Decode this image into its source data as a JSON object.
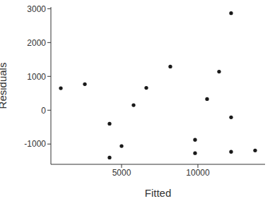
{
  "chart_data": {
    "type": "scatter",
    "x_label": "Fitted",
    "y_label": "Residuals",
    "x": [
      1019,
      2593,
      4213,
      4213,
      5000,
      5787,
      6620,
      8194,
      9815,
      9815,
      10602,
      11389,
      12176,
      12176,
      12176,
      13750
    ],
    "values": [
      650,
      770,
      -400,
      -1400,
      -1060,
      150,
      660,
      1290,
      -875,
      -1270,
      330,
      1140,
      2870,
      -210,
      -1230,
      -1190
    ],
    "xlim": [
      370,
      14400
    ],
    "ylim": [
      -1600,
      3050
    ],
    "xticks": [
      5000,
      10000
    ],
    "yticks": [
      -1000,
      0,
      1000,
      2000,
      3000
    ],
    "color": "#1a1a1a",
    "grid": false
  }
}
